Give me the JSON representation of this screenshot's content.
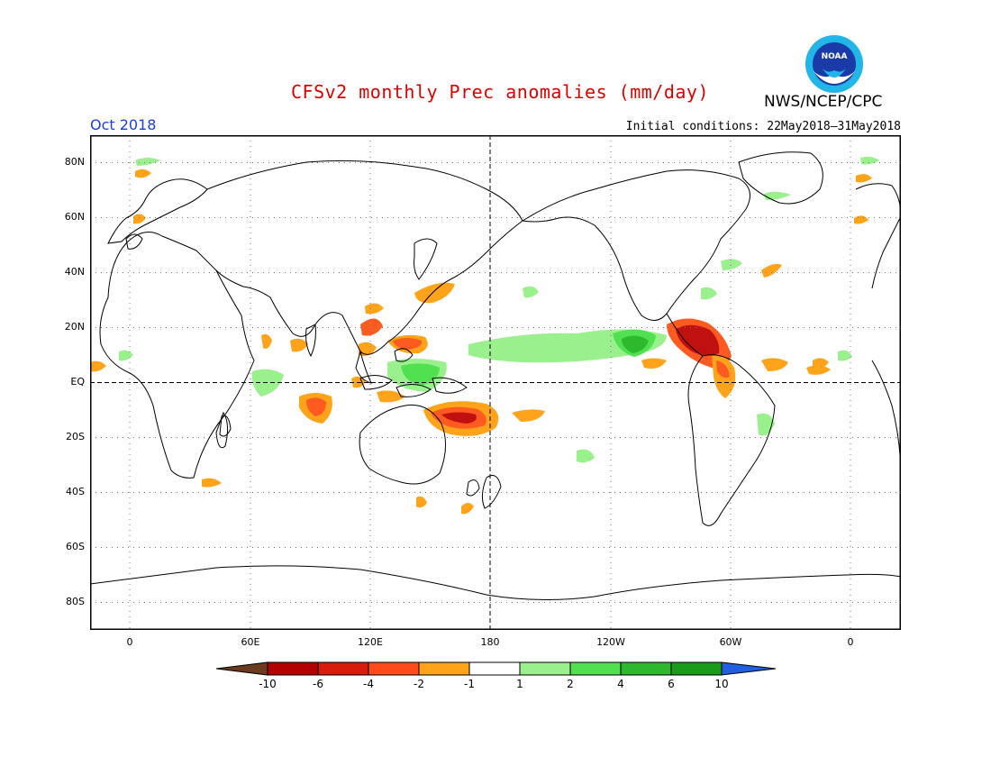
{
  "title": "CFSv2 monthly Prec anomalies (mm/day)",
  "month": "Oct 2018",
  "initial_conditions": "Initial conditions: 22May2018–31May2018",
  "agency": "NWS/NCEP/CPC",
  "logo_text": "NOAA",
  "lat_labels": [
    "80N",
    "60N",
    "40N",
    "20N",
    "EQ",
    "20S",
    "40S",
    "60S",
    "80S"
  ],
  "lon_labels": [
    "0",
    "60E",
    "120E",
    "180",
    "120W",
    "60W",
    "0"
  ],
  "colorbar": {
    "labels": [
      "-10",
      "-6",
      "-4",
      "-2",
      "-1",
      "1",
      "2",
      "4",
      "6",
      "10"
    ],
    "colors": [
      "#6b3a1f",
      "#b30000",
      "#d81c0c",
      "#ff4a1a",
      "#ffa31a",
      "#ffffff",
      "#9af08c",
      "#50e050",
      "#2db82d",
      "#1a9c1a",
      "#1f5fe0"
    ]
  },
  "colors": {
    "title": "#e00000",
    "month": "#1a3fe0",
    "strong_dry": "#c01010",
    "dry": "#ff5a1f",
    "moderate_dry": "#ffa31a",
    "wet": "#9af08c",
    "moderate_wet": "#50e050",
    "strong_wet": "#2db82d"
  }
}
